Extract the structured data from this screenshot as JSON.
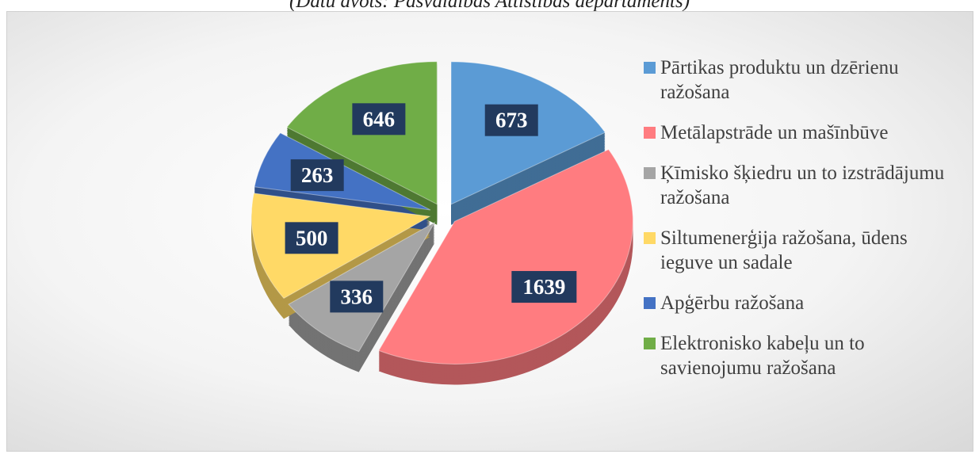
{
  "chart_data": {
    "type": "pie",
    "subtitle": "(Datu avots: Pasvaldības Attīstības departaments)",
    "categories": [
      "Pārtikas produktu un dzērienu ražošana",
      "Metālapstrāde un mašīnbūve",
      "Ķīmisko šķiedru un to izstrādājumu ražošana",
      "Siltumenerģija ražošana, ūdens ieguve un sadale",
      "Apģērbu ražošana",
      "Elektronisko kabeļu un to savienojumu ražošana"
    ],
    "values": [
      673,
      1639,
      336,
      500,
      263,
      646
    ],
    "colors": [
      "#5b9bd5",
      "#ff7c80",
      "#a5a5a5",
      "#ffd966",
      "#4472c4",
      "#70ad47"
    ],
    "legend": "right"
  }
}
